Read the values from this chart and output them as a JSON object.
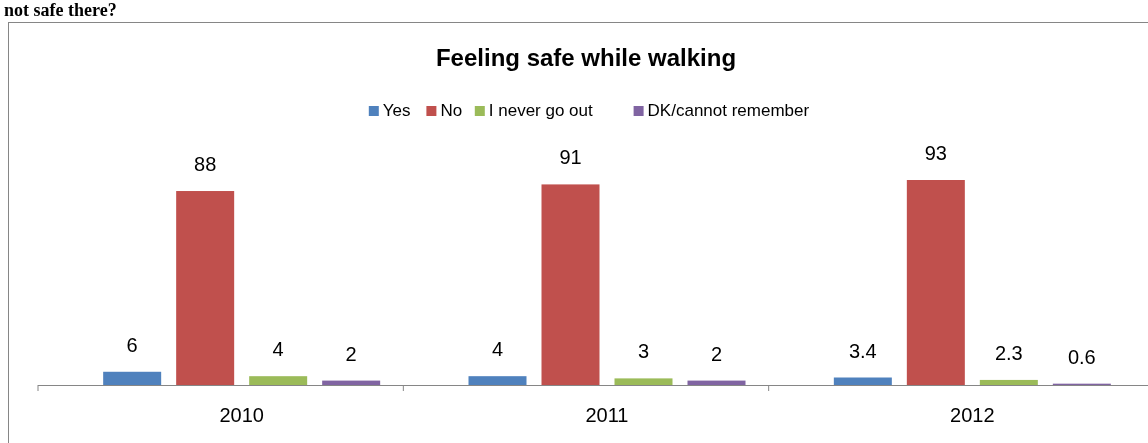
{
  "chart_data": {
    "type": "bar",
    "title": "Feeling safe while walking",
    "annotations": [
      "not safe there?"
    ],
    "categories": [
      "2010",
      "2011",
      "2012"
    ],
    "series": [
      {
        "name": "Yes",
        "color": "#4f81bd",
        "values": [
          6,
          4,
          3.4
        ]
      },
      {
        "name": "No",
        "color": "#c0504d",
        "values": [
          88,
          91,
          93
        ]
      },
      {
        "name": "I never go out",
        "color": "#9bbb59",
        "values": [
          4,
          3,
          2.3
        ]
      },
      {
        "name": "DK/cannot remember",
        "color": "#8064a2",
        "values": [
          2,
          2,
          0.6
        ]
      }
    ],
    "data_labels": true,
    "legend": "top"
  }
}
